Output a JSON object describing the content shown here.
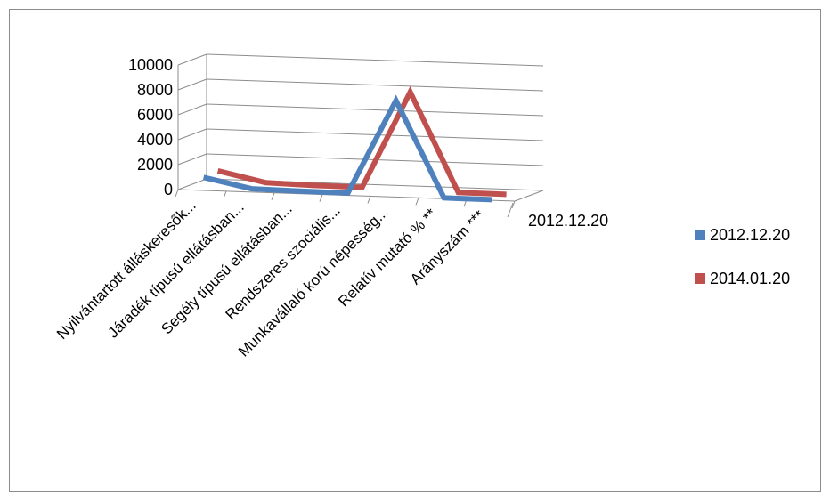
{
  "chart_data": {
    "type": "line",
    "categories": [
      "Nyilvántartott álláskeresők...",
      "Járadék típusú ellátásban...",
      "Segély típusú ellátásban...",
      "Rendszeres szociális...",
      "Munkavállaló korú népesség...",
      "Relatív mutató % **",
      "Arányszám ***"
    ],
    "series": [
      {
        "name": "2012.12.20",
        "color": "#4F81BD",
        "values": [
          1000,
          220,
          160,
          140,
          7700,
          20,
          4
        ]
      },
      {
        "name": "2014.01.20",
        "color": "#C0504D",
        "values": [
          1100,
          280,
          190,
          170,
          7950,
          22,
          5
        ]
      }
    ],
    "yticks": [
      "10000",
      "8000",
      "6000",
      "4000",
      "2000",
      "0"
    ],
    "ylim": [
      0,
      10000
    ],
    "depth_axis_label": "2012.12.20",
    "grid": true,
    "legend_position": "right"
  }
}
